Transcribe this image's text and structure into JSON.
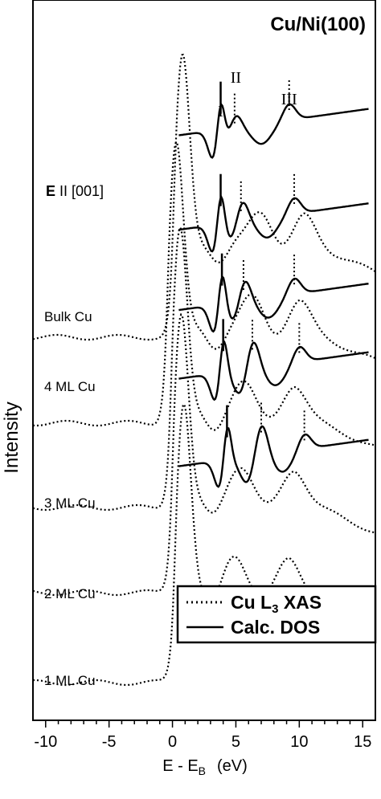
{
  "chart_data": {
    "type": "line",
    "title": "Cu/Ni(100)",
    "xlabel": "E - E",
    "xlabel_sub": "B",
    "xlabel_unit": "(eV)",
    "ylabel": "Intensity",
    "xlim": [
      -11,
      16
    ],
    "xticks": [
      -10,
      -5,
      0,
      5,
      10,
      15
    ],
    "polarization": {
      "prefix": "E",
      "text": " II [001]"
    },
    "legend": {
      "placement": "bottom-right",
      "entries": [
        {
          "style": "dotted",
          "label": "Cu L",
          "sub": "3",
          "suffix": " XAS"
        },
        {
          "style": "solid",
          "label": "Calc. DOS",
          "sub": "",
          "suffix": ""
        }
      ]
    },
    "peak_labels": [
      {
        "text": "I",
        "x": 3.8
      },
      {
        "text": "II",
        "x": 5.0
      },
      {
        "text": "III",
        "x": 9.2
      }
    ],
    "spectra": [
      {
        "name": "Bulk Cu",
        "xas_peak": 0.9,
        "dos_lines": [
          3.8,
          4.9,
          9.2
        ]
      },
      {
        "name": "4 ML Cu",
        "xas_peak": 0.7,
        "dos_lines": [
          3.8,
          5.4,
          9.6
        ]
      },
      {
        "name": "3 ML Cu",
        "xas_peak": 0.6,
        "dos_lines": [
          3.9,
          5.6,
          9.6
        ]
      },
      {
        "name": "2 ML Cu",
        "xas_peak": 0.3,
        "dos_lines": [
          4.0,
          6.3,
          10.0
        ]
      },
      {
        "name": "1 ML Cu",
        "xas_peak": 0.8,
        "dos_lines": [
          4.3,
          7.0,
          10.4
        ]
      }
    ]
  }
}
